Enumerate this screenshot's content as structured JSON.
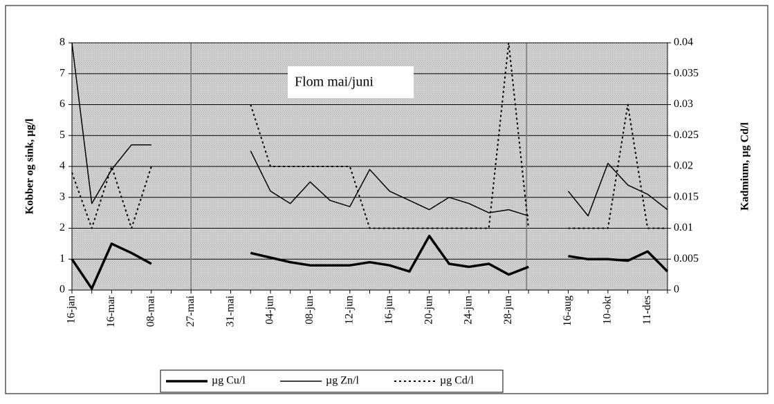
{
  "chart_data": {
    "type": "line",
    "annotation": "Flom mai/juni",
    "y_label": "Kobber og sink, µg/l",
    "y2_label": "Kadmium, µg Cd/l",
    "categories": [
      "16-jan",
      null,
      "16-mar",
      null,
      "08-mai",
      null,
      "27-mai",
      null,
      "31-mai",
      null,
      "04-jun",
      null,
      "08-jun",
      null,
      "12-jun",
      null,
      "16-jun",
      null,
      "20-jun",
      null,
      "24-jun",
      null,
      "28-jun",
      null,
      null,
      "16-aug",
      null,
      "10-okt",
      null,
      "11-des",
      null
    ],
    "ylim": [
      0,
      8
    ],
    "yticks": [
      0,
      1,
      2,
      3,
      4,
      5,
      6,
      7,
      8
    ],
    "y2lim": [
      0,
      0.04
    ],
    "y2ticks": [
      0,
      0.005,
      0.01,
      0.015,
      0.02,
      0.025,
      0.03,
      0.035,
      0.04
    ],
    "grid": true,
    "legend": "bottom",
    "series": [
      {
        "name": "µg Cu/l",
        "color": "#000000",
        "style": "thick",
        "values": [
          1.0,
          0.05,
          1.5,
          1.2,
          0.85,
          null,
          null,
          null,
          null,
          1.2,
          1.05,
          0.9,
          0.8,
          0.8,
          0.8,
          0.9,
          0.8,
          0.6,
          1.75,
          0.85,
          0.75,
          0.85,
          0.5,
          0.75,
          null,
          1.1,
          1.0,
          1.0,
          0.95,
          1.25,
          0.6
        ]
      },
      {
        "name": "µg Zn/l",
        "color": "#000000",
        "style": "thin",
        "values": [
          8.0,
          2.8,
          3.9,
          4.7,
          4.7,
          null,
          null,
          null,
          null,
          4.5,
          3.2,
          2.8,
          3.5,
          2.9,
          2.7,
          3.9,
          3.2,
          2.9,
          2.6,
          3.0,
          2.8,
          2.5,
          2.6,
          2.4,
          null,
          3.2,
          2.4,
          4.1,
          3.4,
          3.1,
          2.6
        ]
      },
      {
        "name": "µg Cd/l",
        "color": "#000000",
        "style": "dotted",
        "axis": "y2",
        "values": [
          0.019,
          0.01,
          0.02,
          0.01,
          0.02,
          null,
          null,
          null,
          null,
          0.03,
          0.02,
          0.02,
          0.02,
          0.02,
          0.02,
          0.01,
          0.01,
          0.01,
          0.01,
          0.01,
          0.01,
          0.01,
          0.04,
          0.01,
          null,
          0.01,
          0.01,
          0.01,
          0.03,
          0.01,
          0.01
        ]
      }
    ]
  }
}
